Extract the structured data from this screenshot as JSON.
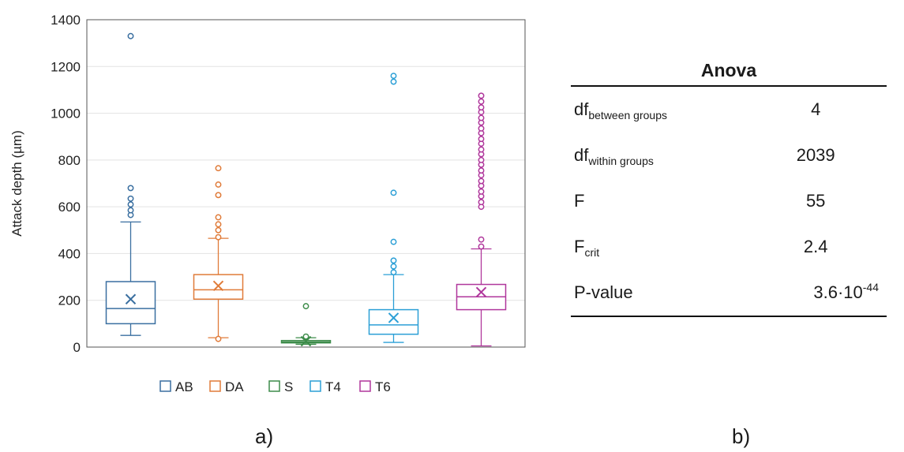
{
  "chart_data": {
    "type": "box",
    "ylabel": "Attack depth (µm)",
    "ylim": [
      0,
      1400
    ],
    "yticks": [
      0,
      200,
      400,
      600,
      800,
      1000,
      1200,
      1400
    ],
    "grid": true,
    "legend_position": "bottom",
    "series": [
      {
        "name": "AB",
        "color": "#3a6fa0",
        "whisker_low": 50,
        "q1": 100,
        "median": 165,
        "q3": 280,
        "whisker_high": 535,
        "mean": 205,
        "outliers": [
          565,
          585,
          610,
          635,
          680,
          1330
        ]
      },
      {
        "name": "DA",
        "color": "#e07b39",
        "whisker_low": 40,
        "q1": 205,
        "median": 245,
        "q3": 310,
        "whisker_high": 465,
        "mean": 262,
        "outliers": [
          35,
          470,
          500,
          525,
          555,
          650,
          695,
          765
        ]
      },
      {
        "name": "S",
        "color": "#3d8c4a",
        "whisker_low": 12,
        "q1": 18,
        "median": 22,
        "q3": 28,
        "whisker_high": 40,
        "mean": 25,
        "outliers": [
          45,
          175
        ]
      },
      {
        "name": "T4",
        "color": "#2b9fd6",
        "whisker_low": 20,
        "q1": 55,
        "median": 95,
        "q3": 160,
        "whisker_high": 310,
        "mean": 125,
        "outliers": [
          320,
          345,
          370,
          450,
          660,
          1135,
          1160
        ]
      },
      {
        "name": "T6",
        "color": "#b0379c",
        "whisker_low": 5,
        "q1": 160,
        "median": 215,
        "q3": 268,
        "whisker_high": 420,
        "mean": 235,
        "outliers": [
          430,
          460,
          600,
          620,
          645,
          665,
          690,
          710,
          735,
          755,
          780,
          800,
          825,
          845,
          870,
          890,
          915,
          935,
          960,
          980,
          1005,
          1025,
          1050,
          1075
        ]
      }
    ]
  },
  "panel_labels": {
    "a": "a)",
    "b": "b)"
  },
  "anova": {
    "title": "Anova",
    "rows": [
      {
        "label_main": "df",
        "label_sub": "between groups",
        "value_main": "4",
        "value_sup": ""
      },
      {
        "label_main": "df",
        "label_sub": "within groups",
        "value_main": "2039",
        "value_sup": ""
      },
      {
        "label_main": "F",
        "label_sub": "",
        "value_main": "55",
        "value_sup": ""
      },
      {
        "label_main": "F",
        "label_sub": "crit",
        "value_main": "2.4",
        "value_sup": ""
      },
      {
        "label_main": "P-value",
        "label_sub": "",
        "value_main": "3.6·10",
        "value_sup": "-44"
      }
    ]
  }
}
